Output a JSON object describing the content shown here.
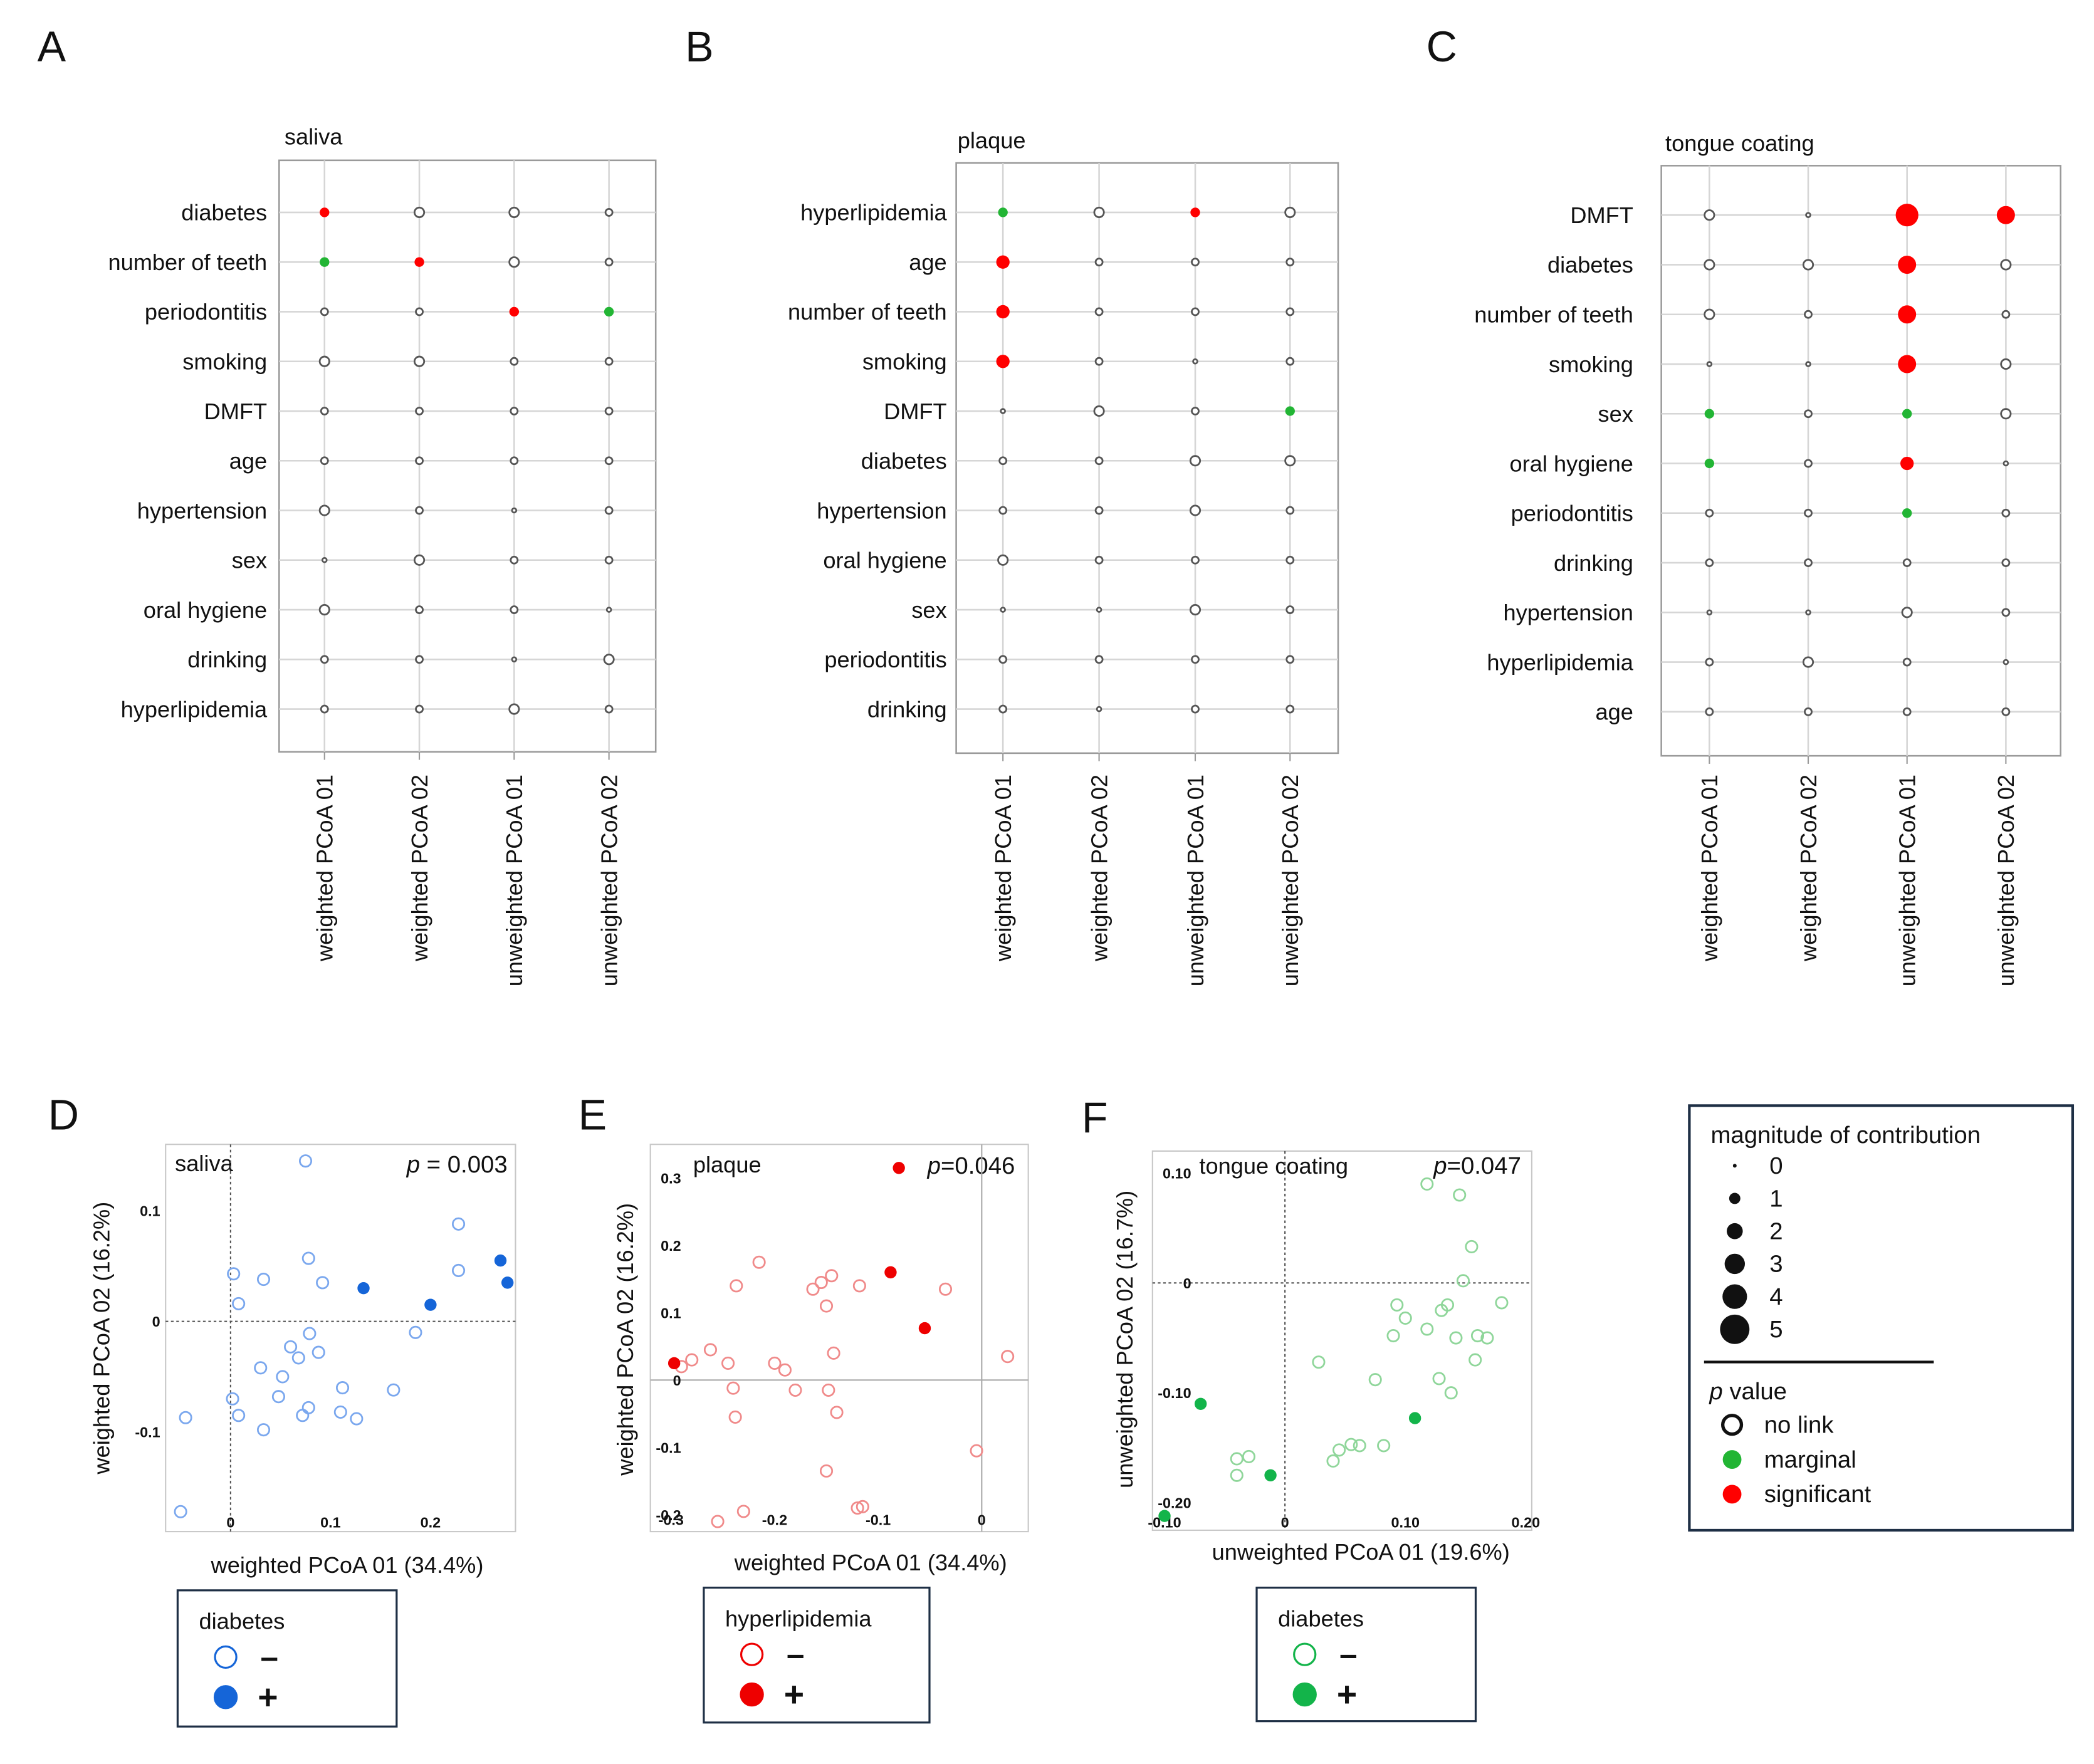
{
  "colors": {
    "significant": "#ff0000",
    "marginal": "#22b534",
    "no_link_stroke": "#555555",
    "saliva_blue": "#1565d8",
    "saliva_blue_light": "#7aa7ee",
    "plaque_red": "#ee0000",
    "plaque_red_light": "#f08a8a",
    "tongue_green": "#13b44a",
    "tongue_green_light": "#8fd69a"
  },
  "legend_main": {
    "title": "magnitude of contribution",
    "sizes": [
      {
        "label": "0",
        "magnitude": 0
      },
      {
        "label": "1",
        "magnitude": 1
      },
      {
        "label": "2",
        "magnitude": 2
      },
      {
        "label": "3",
        "magnitude": 3
      },
      {
        "label": "4",
        "magnitude": 4
      },
      {
        "label": "5",
        "magnitude": 5
      }
    ],
    "pvalue_title_p": "p",
    "pvalue_title_rest": " value",
    "pvalues": [
      {
        "label": "no link",
        "status": "no link"
      },
      {
        "label": "marginal",
        "status": "marginal"
      },
      {
        "label": "significant",
        "status": "significant"
      }
    ]
  },
  "chart_data": [
    {
      "panel": "A",
      "type": "dot-matrix",
      "title": "saliva",
      "columns": [
        "weighted PCoA 01",
        "weighted PCoA 02",
        "unweighted PCoA 01",
        "unweighted PCoA 02"
      ],
      "rows": [
        "diabetes",
        "number of teeth",
        "periodontitis",
        "smoking",
        "DMFT",
        "age",
        "hypertension",
        "sex",
        "oral hygiene",
        "drinking",
        "hyperlipidemia"
      ],
      "magnitude": [
        [
          2,
          2,
          2,
          1
        ],
        [
          2,
          2,
          2,
          1
        ],
        [
          1,
          1,
          2,
          2
        ],
        [
          2,
          2,
          1,
          1
        ],
        [
          1,
          1,
          1,
          1
        ],
        [
          1,
          1,
          1,
          1
        ],
        [
          2,
          1,
          0,
          1
        ],
        [
          0,
          2,
          1,
          1
        ],
        [
          2,
          1,
          1,
          0
        ],
        [
          1,
          1,
          0,
          2
        ],
        [
          1,
          1,
          2,
          1
        ]
      ],
      "status": [
        [
          "s",
          "n",
          "n",
          "n"
        ],
        [
          "m",
          "s",
          "n",
          "n"
        ],
        [
          "n",
          "n",
          "s",
          "m"
        ],
        [
          "n",
          "n",
          "n",
          "n"
        ],
        [
          "n",
          "n",
          "n",
          "n"
        ],
        [
          "n",
          "n",
          "n",
          "n"
        ],
        [
          "n",
          "n",
          "n",
          "n"
        ],
        [
          "n",
          "n",
          "n",
          "n"
        ],
        [
          "n",
          "n",
          "n",
          "n"
        ],
        [
          "n",
          "n",
          "n",
          "n"
        ],
        [
          "n",
          "n",
          "n",
          "n"
        ]
      ]
    },
    {
      "panel": "B",
      "type": "dot-matrix",
      "title": "plaque",
      "columns": [
        "weighted PCoA 01",
        "weighted PCoA 02",
        "unweighted PCoA 01",
        "unweighted PCoA 02"
      ],
      "rows": [
        "hyperlipidemia",
        "age",
        "number of teeth",
        "smoking",
        "DMFT",
        "diabetes",
        "hypertension",
        "oral hygiene",
        "sex",
        "periodontitis",
        "drinking"
      ],
      "magnitude": [
        [
          2,
          2,
          2,
          2
        ],
        [
          3,
          1,
          1,
          1
        ],
        [
          3,
          1,
          1,
          1
        ],
        [
          3,
          1,
          0,
          1
        ],
        [
          0,
          2,
          1,
          2
        ],
        [
          1,
          1,
          2,
          2
        ],
        [
          1,
          1,
          2,
          1
        ],
        [
          2,
          1,
          1,
          1
        ],
        [
          0,
          0,
          2,
          1
        ],
        [
          1,
          1,
          1,
          1
        ],
        [
          1,
          0,
          1,
          1
        ]
      ],
      "status": [
        [
          "m",
          "n",
          "s",
          "n"
        ],
        [
          "s",
          "n",
          "n",
          "n"
        ],
        [
          "s",
          "n",
          "n",
          "n"
        ],
        [
          "s",
          "n",
          "n",
          "n"
        ],
        [
          "n",
          "n",
          "n",
          "m"
        ],
        [
          "n",
          "n",
          "n",
          "n"
        ],
        [
          "n",
          "n",
          "n",
          "n"
        ],
        [
          "n",
          "n",
          "n",
          "n"
        ],
        [
          "n",
          "n",
          "n",
          "n"
        ],
        [
          "n",
          "n",
          "n",
          "n"
        ],
        [
          "n",
          "n",
          "n",
          "n"
        ]
      ]
    },
    {
      "panel": "C",
      "type": "dot-matrix",
      "title": "tongue coating",
      "columns": [
        "weighted PCoA 01",
        "weighted PCoA 02",
        "unweighted PCoA 01",
        "unweighted PCoA 02"
      ],
      "rows": [
        "DMFT",
        "diabetes",
        "number of teeth",
        "smoking",
        "sex",
        "oral hygiene",
        "periodontitis",
        "drinking",
        "hypertension",
        "hyperlipidemia",
        "age"
      ],
      "magnitude": [
        [
          2,
          0,
          5,
          4
        ],
        [
          2,
          2,
          4,
          2
        ],
        [
          2,
          1,
          4,
          1
        ],
        [
          0,
          0,
          4,
          2
        ],
        [
          2,
          1,
          2,
          2
        ],
        [
          2,
          1,
          3,
          0
        ],
        [
          1,
          1,
          2,
          1
        ],
        [
          1,
          1,
          1,
          1
        ],
        [
          0,
          0,
          2,
          1
        ],
        [
          1,
          2,
          1,
          0
        ],
        [
          1,
          1,
          1,
          1
        ]
      ],
      "status": [
        [
          "n",
          "n",
          "s",
          "s"
        ],
        [
          "n",
          "n",
          "s",
          "n"
        ],
        [
          "n",
          "n",
          "s",
          "n"
        ],
        [
          "n",
          "n",
          "s",
          "n"
        ],
        [
          "m",
          "n",
          "m",
          "n"
        ],
        [
          "m",
          "n",
          "s",
          "n"
        ],
        [
          "n",
          "n",
          "m",
          "n"
        ],
        [
          "n",
          "n",
          "n",
          "n"
        ],
        [
          "n",
          "n",
          "n",
          "n"
        ],
        [
          "n",
          "n",
          "n",
          "n"
        ],
        [
          "n",
          "n",
          "n",
          "n"
        ]
      ]
    },
    {
      "panel": "D",
      "type": "scatter",
      "title": "saliva",
      "p_italic": "p",
      "p_rest": " = 0.003",
      "xlabel": "weighted PCoA 01 (34.4%)",
      "ylabel": "weighted PCoA 02 (16.2%)",
      "xlim": [
        -0.065,
        0.285
      ],
      "ylim": [
        -0.19,
        0.16
      ],
      "xticks": [
        {
          "v": 0,
          "label": "0"
        },
        {
          "v": 0.1,
          "label": "0.1"
        },
        {
          "v": 0.2,
          "label": "0.2"
        }
      ],
      "yticks": [
        {
          "v": 0.1,
          "label": "0.1"
        },
        {
          "v": 0,
          "label": "0"
        },
        {
          "v": -0.1,
          "label": "-0.1"
        }
      ],
      "ref_style": "dotted",
      "color_key": "saliva",
      "legend": {
        "title": "diabetes",
        "neg": "–",
        "pos": "+"
      },
      "series": [
        {
          "name": "–",
          "filled": false,
          "points": [
            [
              0.075,
              0.145
            ],
            [
              0.078,
              0.057
            ],
            [
              0.033,
              0.038
            ],
            [
              0.003,
              0.043
            ],
            [
              0.008,
              0.016
            ],
            [
              0.092,
              0.035
            ],
            [
              0.079,
              -0.011
            ],
            [
              0.088,
              -0.028
            ],
            [
              0.06,
              -0.023
            ],
            [
              0.068,
              -0.033
            ],
            [
              0.052,
              -0.05
            ],
            [
              0.03,
              -0.042
            ],
            [
              0.048,
              -0.068
            ],
            [
              0.002,
              -0.07
            ],
            [
              0.008,
              -0.085
            ],
            [
              0.033,
              -0.098
            ],
            [
              0.078,
              -0.078
            ],
            [
              0.072,
              -0.085
            ],
            [
              0.112,
              -0.06
            ],
            [
              0.11,
              -0.082
            ],
            [
              0.126,
              -0.088
            ],
            [
              0.163,
              -0.062
            ],
            [
              0.185,
              -0.01
            ],
            [
              0.228,
              0.046
            ],
            [
              0.228,
              0.088
            ],
            [
              -0.045,
              -0.087
            ],
            [
              -0.05,
              -0.172
            ]
          ]
        },
        {
          "name": "+",
          "filled": true,
          "points": [
            [
              0.133,
              0.03
            ],
            [
              0.2,
              0.015
            ],
            [
              0.27,
              0.055
            ],
            [
              0.277,
              0.035
            ]
          ]
        }
      ]
    },
    {
      "panel": "E",
      "type": "scatter",
      "title": "plaque",
      "p_italic": "p",
      "p_rest": "=0.046",
      "xlabel": "weighted PCoA 01 (34.4%)",
      "ylabel": "weighted PCoA 02 (16.2%)",
      "xlim": [
        -0.32,
        0.045
      ],
      "ylim": [
        -0.225,
        0.35
      ],
      "xticks": [
        {
          "v": -0.3,
          "label": "-0.3"
        },
        {
          "v": -0.2,
          "label": "-0.2"
        },
        {
          "v": -0.1,
          "label": "-0.1"
        },
        {
          "v": 0,
          "label": "0"
        }
      ],
      "yticks": [
        {
          "v": 0.3,
          "label": "0.3"
        },
        {
          "v": 0.2,
          "label": "0.2"
        },
        {
          "v": 0.1,
          "label": "0.1"
        },
        {
          "v": 0,
          "label": "0"
        },
        {
          "v": -0.1,
          "label": "-0.1"
        },
        {
          "v": -0.2,
          "label": "-0.2"
        }
      ],
      "ref_style": "solid",
      "color_key": "plaque",
      "legend": {
        "title": "hyperlipidemia",
        "neg": "–",
        "pos": "+"
      },
      "series": [
        {
          "name": "–",
          "filled": false,
          "points": [
            [
              -0.215,
              0.175
            ],
            [
              -0.237,
              0.14
            ],
            [
              -0.163,
              0.135
            ],
            [
              -0.155,
              0.145
            ],
            [
              -0.145,
              0.155
            ],
            [
              -0.15,
              0.11
            ],
            [
              -0.118,
              0.14
            ],
            [
              -0.035,
              0.135
            ],
            [
              -0.262,
              0.045
            ],
            [
              -0.28,
              0.03
            ],
            [
              -0.29,
              0.02
            ],
            [
              -0.245,
              0.025
            ],
            [
              -0.2,
              0.025
            ],
            [
              -0.19,
              0.015
            ],
            [
              -0.143,
              0.04
            ],
            [
              -0.24,
              -0.012
            ],
            [
              -0.18,
              -0.015
            ],
            [
              -0.148,
              -0.015
            ],
            [
              -0.238,
              -0.055
            ],
            [
              -0.14,
              -0.048
            ],
            [
              -0.15,
              -0.135
            ],
            [
              -0.12,
              -0.19
            ],
            [
              -0.115,
              -0.188
            ],
            [
              -0.23,
              -0.195
            ],
            [
              -0.255,
              -0.21
            ],
            [
              -0.005,
              -0.105
            ],
            [
              0.025,
              0.035
            ]
          ]
        },
        {
          "name": "+",
          "filled": true,
          "points": [
            [
              -0.08,
              0.315
            ],
            [
              -0.088,
              0.16
            ],
            [
              -0.055,
              0.077
            ],
            [
              -0.297,
              0.025
            ]
          ]
        }
      ]
    },
    {
      "panel": "F",
      "type": "scatter",
      "title": "tongue coating",
      "p_italic": "p",
      "p_rest": "=0.047",
      "xlabel": "unweighted PCoA 01 (19.6%)",
      "ylabel": "unweighted PCoA 02 (16.7%)",
      "xlim": [
        -0.11,
        0.205
      ],
      "ylim": [
        -0.225,
        0.12
      ],
      "xticks": [
        {
          "v": -0.1,
          "label": "-0.10"
        },
        {
          "v": 0,
          "label": "0"
        },
        {
          "v": 0.1,
          "label": "0.10"
        },
        {
          "v": 0.2,
          "label": "0.20"
        }
      ],
      "yticks": [
        {
          "v": 0.1,
          "label": "0.10"
        },
        {
          "v": 0,
          "label": "0"
        },
        {
          "v": -0.1,
          "label": "-0.10"
        },
        {
          "v": -0.2,
          "label": "-0.20"
        }
      ],
      "ref_style": "dotted",
      "color_key": "tongue",
      "legend": {
        "title": "diabetes",
        "neg": "–",
        "pos": "+"
      },
      "series": [
        {
          "name": "–",
          "filled": false,
          "points": [
            [
              0.118,
              0.09
            ],
            [
              0.145,
              0.08
            ],
            [
              0.155,
              0.033
            ],
            [
              0.148,
              0.002
            ],
            [
              0.13,
              -0.025
            ],
            [
              0.135,
              -0.02
            ],
            [
              0.18,
              -0.018
            ],
            [
              0.093,
              -0.02
            ],
            [
              0.1,
              -0.032
            ],
            [
              0.118,
              -0.042
            ],
            [
              0.09,
              -0.048
            ],
            [
              0.142,
              -0.05
            ],
            [
              0.16,
              -0.048
            ],
            [
              0.168,
              -0.05
            ],
            [
              0.158,
              -0.07
            ],
            [
              0.028,
              -0.072
            ],
            [
              0.075,
              -0.088
            ],
            [
              0.128,
              -0.087
            ],
            [
              0.138,
              -0.1
            ],
            [
              0.055,
              -0.147
            ],
            [
              0.062,
              -0.148
            ],
            [
              0.082,
              -0.148
            ],
            [
              0.045,
              -0.152
            ],
            [
              0.04,
              -0.162
            ],
            [
              -0.03,
              -0.158
            ],
            [
              -0.04,
              -0.16
            ],
            [
              -0.04,
              -0.175
            ]
          ]
        },
        {
          "name": "+",
          "filled": true,
          "points": [
            [
              -0.07,
              -0.11
            ],
            [
              0.108,
              -0.123
            ],
            [
              -0.012,
              -0.175
            ],
            [
              -0.1,
              -0.212
            ]
          ]
        }
      ]
    }
  ],
  "panel_letters": [
    "A",
    "B",
    "C",
    "D",
    "E",
    "F"
  ]
}
